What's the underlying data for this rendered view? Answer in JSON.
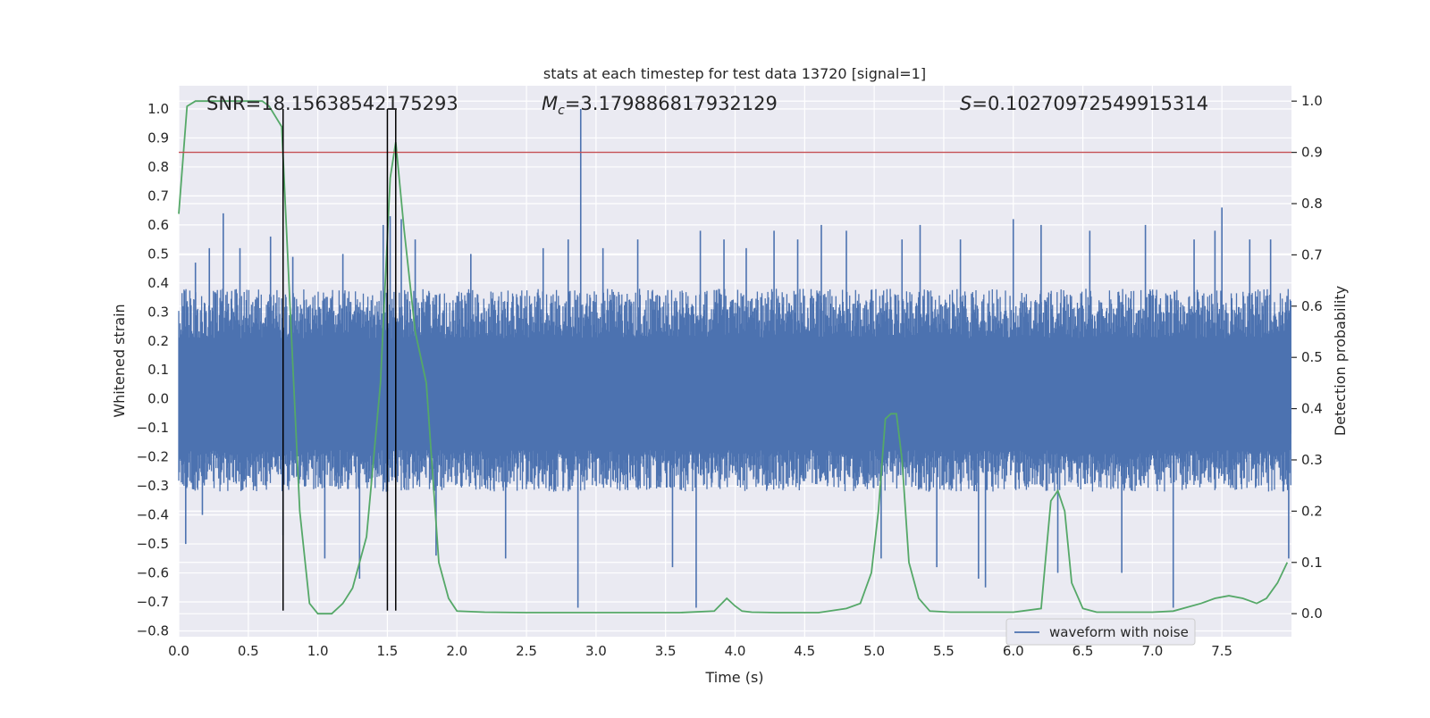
{
  "chart_data": {
    "type": "line",
    "title": "stats at each timestep for test data 13720 [signal=1]",
    "xlabel": "Time (s)",
    "ylabel_left": "Whitened strain",
    "ylabel_right": "Detection probability",
    "xlim": [
      0,
      8
    ],
    "ylim_left": [
      -0.82,
      1.08
    ],
    "ylim_right": [
      -0.045,
      1.03
    ],
    "x_ticks": [
      "0.0",
      "0.5",
      "1.0",
      "1.5",
      "2.0",
      "2.5",
      "3.0",
      "3.5",
      "4.0",
      "4.5",
      "5.0",
      "5.5",
      "6.0",
      "6.5",
      "7.0",
      "7.5"
    ],
    "y_left_ticks": [
      "1.0",
      "0.9",
      "0.8",
      "0.7",
      "0.6",
      "0.5",
      "0.4",
      "0.3",
      "0.2",
      "0.1",
      "0.0",
      "−0.1",
      "−0.2",
      "−0.3",
      "−0.4",
      "−0.5",
      "−0.6",
      "−0.7",
      "−0.8"
    ],
    "y_right_ticks": [
      "1.0",
      "0.9",
      "0.8",
      "0.7",
      "0.6",
      "0.5",
      "0.4",
      "0.3",
      "0.2",
      "0.1",
      "0.0"
    ],
    "grid": true,
    "legend_position": "lower-right",
    "annotations": {
      "snr": "SNR=18.15638542175293",
      "mc_symbol": "M",
      "mc_sub": "c",
      "mc_value": "=3.179886817932129",
      "s_symbol": "S",
      "s_value": "=0.10270972549915314"
    },
    "series": [
      {
        "name": "waveform with noise",
        "axis": "left",
        "color": "#4c72b0",
        "typical_envelope_max": 0.38,
        "typical_envelope_min": -0.32,
        "x": [
          0.05,
          0.12,
          0.17,
          0.22,
          0.32,
          0.44,
          0.66,
          0.75,
          0.82,
          1.05,
          1.18,
          1.3,
          1.47,
          1.52,
          1.6,
          1.7,
          1.85,
          2.1,
          2.35,
          2.62,
          2.8,
          2.87,
          2.89,
          3.05,
          3.3,
          3.55,
          3.72,
          3.75,
          3.92,
          4.08,
          4.28,
          4.45,
          4.62,
          4.8,
          5.05,
          5.2,
          5.33,
          5.45,
          5.62,
          5.75,
          5.8,
          6.0,
          6.2,
          6.32,
          6.55,
          6.78,
          6.95,
          7.15,
          7.3,
          7.45,
          7.5,
          7.7,
          7.85,
          7.98
        ],
        "values": [
          -0.5,
          0.47,
          -0.4,
          0.52,
          0.64,
          0.52,
          0.56,
          -0.47,
          0.49,
          -0.55,
          0.5,
          -0.62,
          0.6,
          0.63,
          0.62,
          0.55,
          -0.54,
          0.5,
          -0.55,
          0.52,
          0.55,
          -0.72,
          1.0,
          0.52,
          0.55,
          -0.58,
          -0.72,
          0.58,
          0.55,
          0.52,
          0.58,
          0.55,
          0.6,
          0.58,
          -0.55,
          0.55,
          0.6,
          -0.58,
          0.55,
          -0.62,
          -0.65,
          0.62,
          0.6,
          -0.6,
          0.58,
          -0.6,
          0.6,
          -0.72,
          0.55,
          0.58,
          0.66,
          0.55,
          0.55,
          -0.55
        ]
      },
      {
        "name": "",
        "axis": "right",
        "color": "#55a868",
        "x": [
          0.0,
          0.06,
          0.12,
          0.3,
          0.5,
          0.6,
          0.65,
          0.74,
          0.8,
          0.87,
          0.94,
          1.0,
          1.1,
          1.18,
          1.25,
          1.35,
          1.45,
          1.52,
          1.56,
          1.62,
          1.7,
          1.78,
          1.87,
          1.94,
          2.0,
          2.2,
          2.5,
          2.7,
          3.0,
          3.3,
          3.6,
          3.85,
          3.94,
          4.0,
          4.05,
          4.12,
          4.3,
          4.6,
          4.8,
          4.9,
          4.98,
          5.03,
          5.08,
          5.12,
          5.16,
          5.2,
          5.25,
          5.32,
          5.4,
          5.55,
          6.0,
          6.2,
          6.27,
          6.32,
          6.37,
          6.42,
          6.5,
          6.6,
          6.75,
          7.0,
          7.15,
          7.35,
          7.45,
          7.55,
          7.65,
          7.7,
          7.75,
          7.82,
          7.9,
          7.97
        ],
        "values": [
          0.78,
          0.99,
          1.0,
          1.0,
          1.0,
          1.0,
          0.99,
          0.95,
          0.6,
          0.2,
          0.02,
          0.0,
          0.0,
          0.02,
          0.05,
          0.15,
          0.45,
          0.85,
          0.92,
          0.75,
          0.55,
          0.45,
          0.1,
          0.03,
          0.005,
          0.003,
          0.002,
          0.002,
          0.002,
          0.002,
          0.002,
          0.005,
          0.03,
          0.015,
          0.005,
          0.003,
          0.002,
          0.002,
          0.01,
          0.02,
          0.08,
          0.2,
          0.38,
          0.39,
          0.39,
          0.3,
          0.1,
          0.03,
          0.005,
          0.003,
          0.003,
          0.01,
          0.22,
          0.24,
          0.2,
          0.06,
          0.01,
          0.003,
          0.003,
          0.003,
          0.005,
          0.02,
          0.03,
          0.035,
          0.03,
          0.025,
          0.02,
          0.03,
          0.06,
          0.1
        ]
      },
      {
        "name": "",
        "axis": "right",
        "color": "#c44e52",
        "x": [
          0,
          8
        ],
        "values": [
          0.9,
          0.9
        ]
      }
    ],
    "vertical_markers": {
      "color": "#000000",
      "x": [
        0.75,
        1.5,
        1.56
      ],
      "y_range_left": [
        -0.73,
        1.0
      ]
    }
  }
}
